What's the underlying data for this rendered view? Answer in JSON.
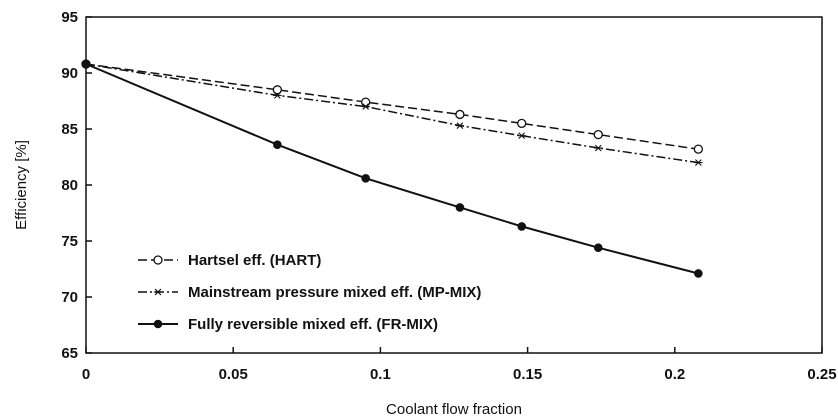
{
  "chart_data": {
    "type": "line",
    "xlabel": "Coolant flow fraction",
    "ylabel": "Efficiency [%]",
    "xlim": [
      0,
      0.25
    ],
    "ylim": [
      65,
      95
    ],
    "xticks": [
      0,
      0.05,
      0.1,
      0.15,
      0.2,
      0.25
    ],
    "yticks": [
      65,
      70,
      75,
      80,
      85,
      90,
      95
    ],
    "xtick_labels": [
      "0",
      "0.05",
      "0.1",
      "0.15",
      "0.2",
      "0.25"
    ],
    "ytick_labels": [
      "65",
      "70",
      "75",
      "80",
      "85",
      "90",
      "95"
    ],
    "grid": false,
    "legend_position": "lower-left",
    "series": [
      {
        "name": "Hartsel eff. (HART)",
        "line_style": "dashed",
        "marker": "open-circle",
        "x": [
          0,
          0.065,
          0.095,
          0.127,
          0.148,
          0.174,
          0.208
        ],
        "y": [
          90.8,
          88.5,
          87.4,
          86.3,
          85.5,
          84.5,
          83.2
        ]
      },
      {
        "name": "Mainstream pressure mixed eff. (MP-MIX)",
        "line_style": "dash-dot",
        "marker": "asterisk",
        "x": [
          0,
          0.065,
          0.095,
          0.127,
          0.148,
          0.174,
          0.208
        ],
        "y": [
          90.8,
          88.0,
          87.0,
          85.3,
          84.4,
          83.3,
          82.0
        ]
      },
      {
        "name": "Fully reversible mixed eff. (FR-MIX)",
        "line_style": "solid",
        "marker": "filled-circle",
        "x": [
          0,
          0.065,
          0.095,
          0.127,
          0.148,
          0.174,
          0.208
        ],
        "y": [
          90.8,
          83.6,
          80.6,
          78.0,
          76.3,
          74.4,
          72.1
        ]
      }
    ]
  }
}
